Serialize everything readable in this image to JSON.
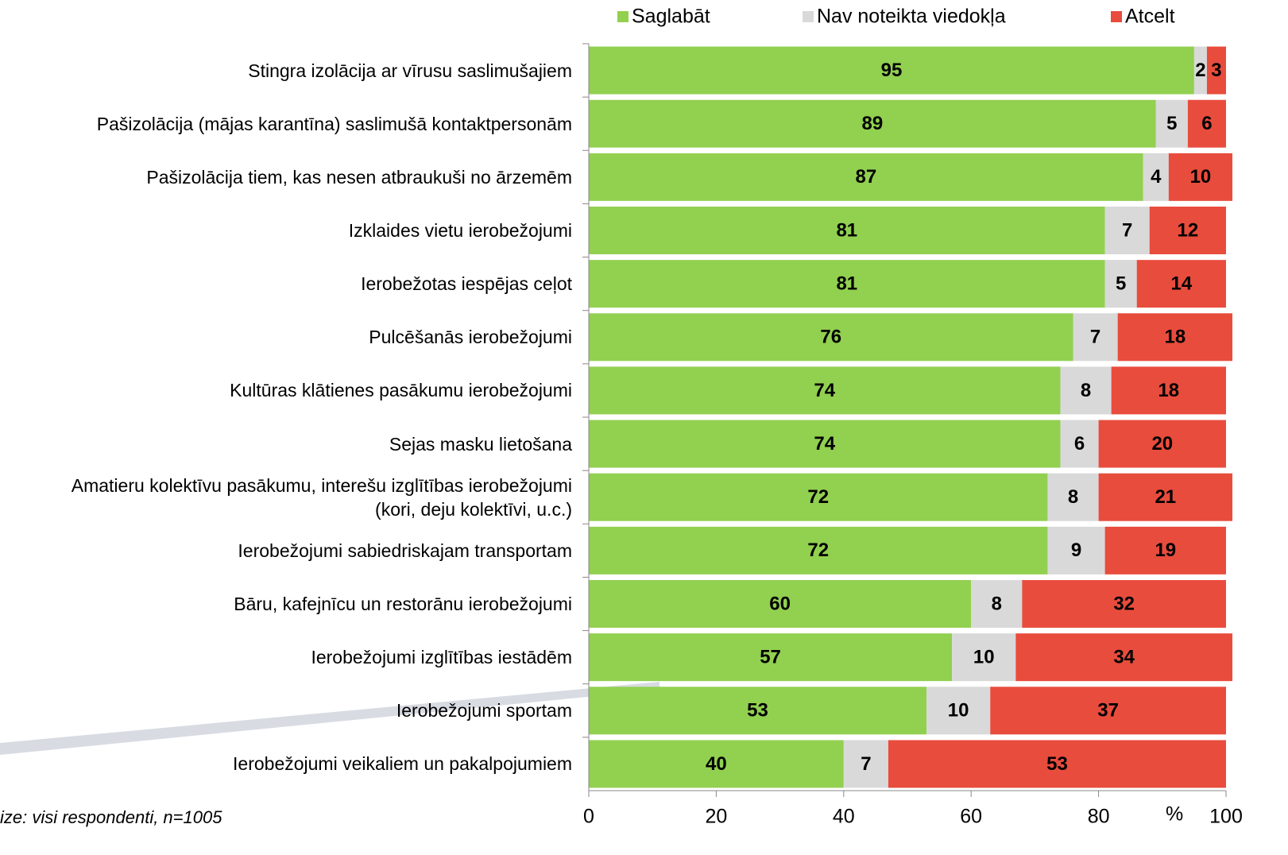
{
  "chart_data": {
    "type": "stacked-bar",
    "orientation": "horizontal",
    "categories": [
      "Stingra izolācija ar vīrusu saslimušajiem",
      "Pašizolācija (mājas karantīna) saslimušā kontaktpersonām",
      "Pašizolācija tiem, kas nesen atbraukuši no ārzemēm",
      "Izklaides vietu ierobežojumi",
      "Ierobežotas iespējas ceļot",
      "Pulcēšanās ierobežojumi",
      "Kultūras klātienes pasākumu ierobežojumi",
      "Sejas masku lietošana",
      "Amatieru kolektīvu pasākumu, interešu izglītības ierobežojumi\n(kori, deju kolektīvi, u.c.)",
      "Ierobežojumi sabiedriskajam transportam",
      "Bāru, kafejnīcu un restorānu ierobežojumi",
      "Ierobežojumi izglītības iestādēm",
      "Ierobežojumi sportam",
      "Ierobežojumi veikaliem un pakalpojumiem"
    ],
    "series": [
      {
        "name": "Saglabāt",
        "color": "#92d050",
        "values": [
          95,
          89,
          87,
          81,
          81,
          76,
          74,
          74,
          72,
          72,
          60,
          57,
          53,
          40
        ]
      },
      {
        "name": "Nav noteikta viedokļa",
        "color": "#d9d9d9",
        "values": [
          2,
          5,
          4,
          7,
          5,
          7,
          8,
          6,
          8,
          9,
          8,
          10,
          10,
          7
        ]
      },
      {
        "name": "Atcelt",
        "color": "#e84c3d",
        "values": [
          3,
          6,
          10,
          12,
          14,
          18,
          18,
          20,
          21,
          19,
          32,
          34,
          37,
          53
        ]
      }
    ],
    "xlim": [
      0,
      100
    ],
    "xticks": [
      0,
      20,
      40,
      60,
      80,
      100
    ],
    "x_axis_label": "%",
    "legend": "top",
    "footnote": "ize: visi respondenti, n=1005"
  }
}
